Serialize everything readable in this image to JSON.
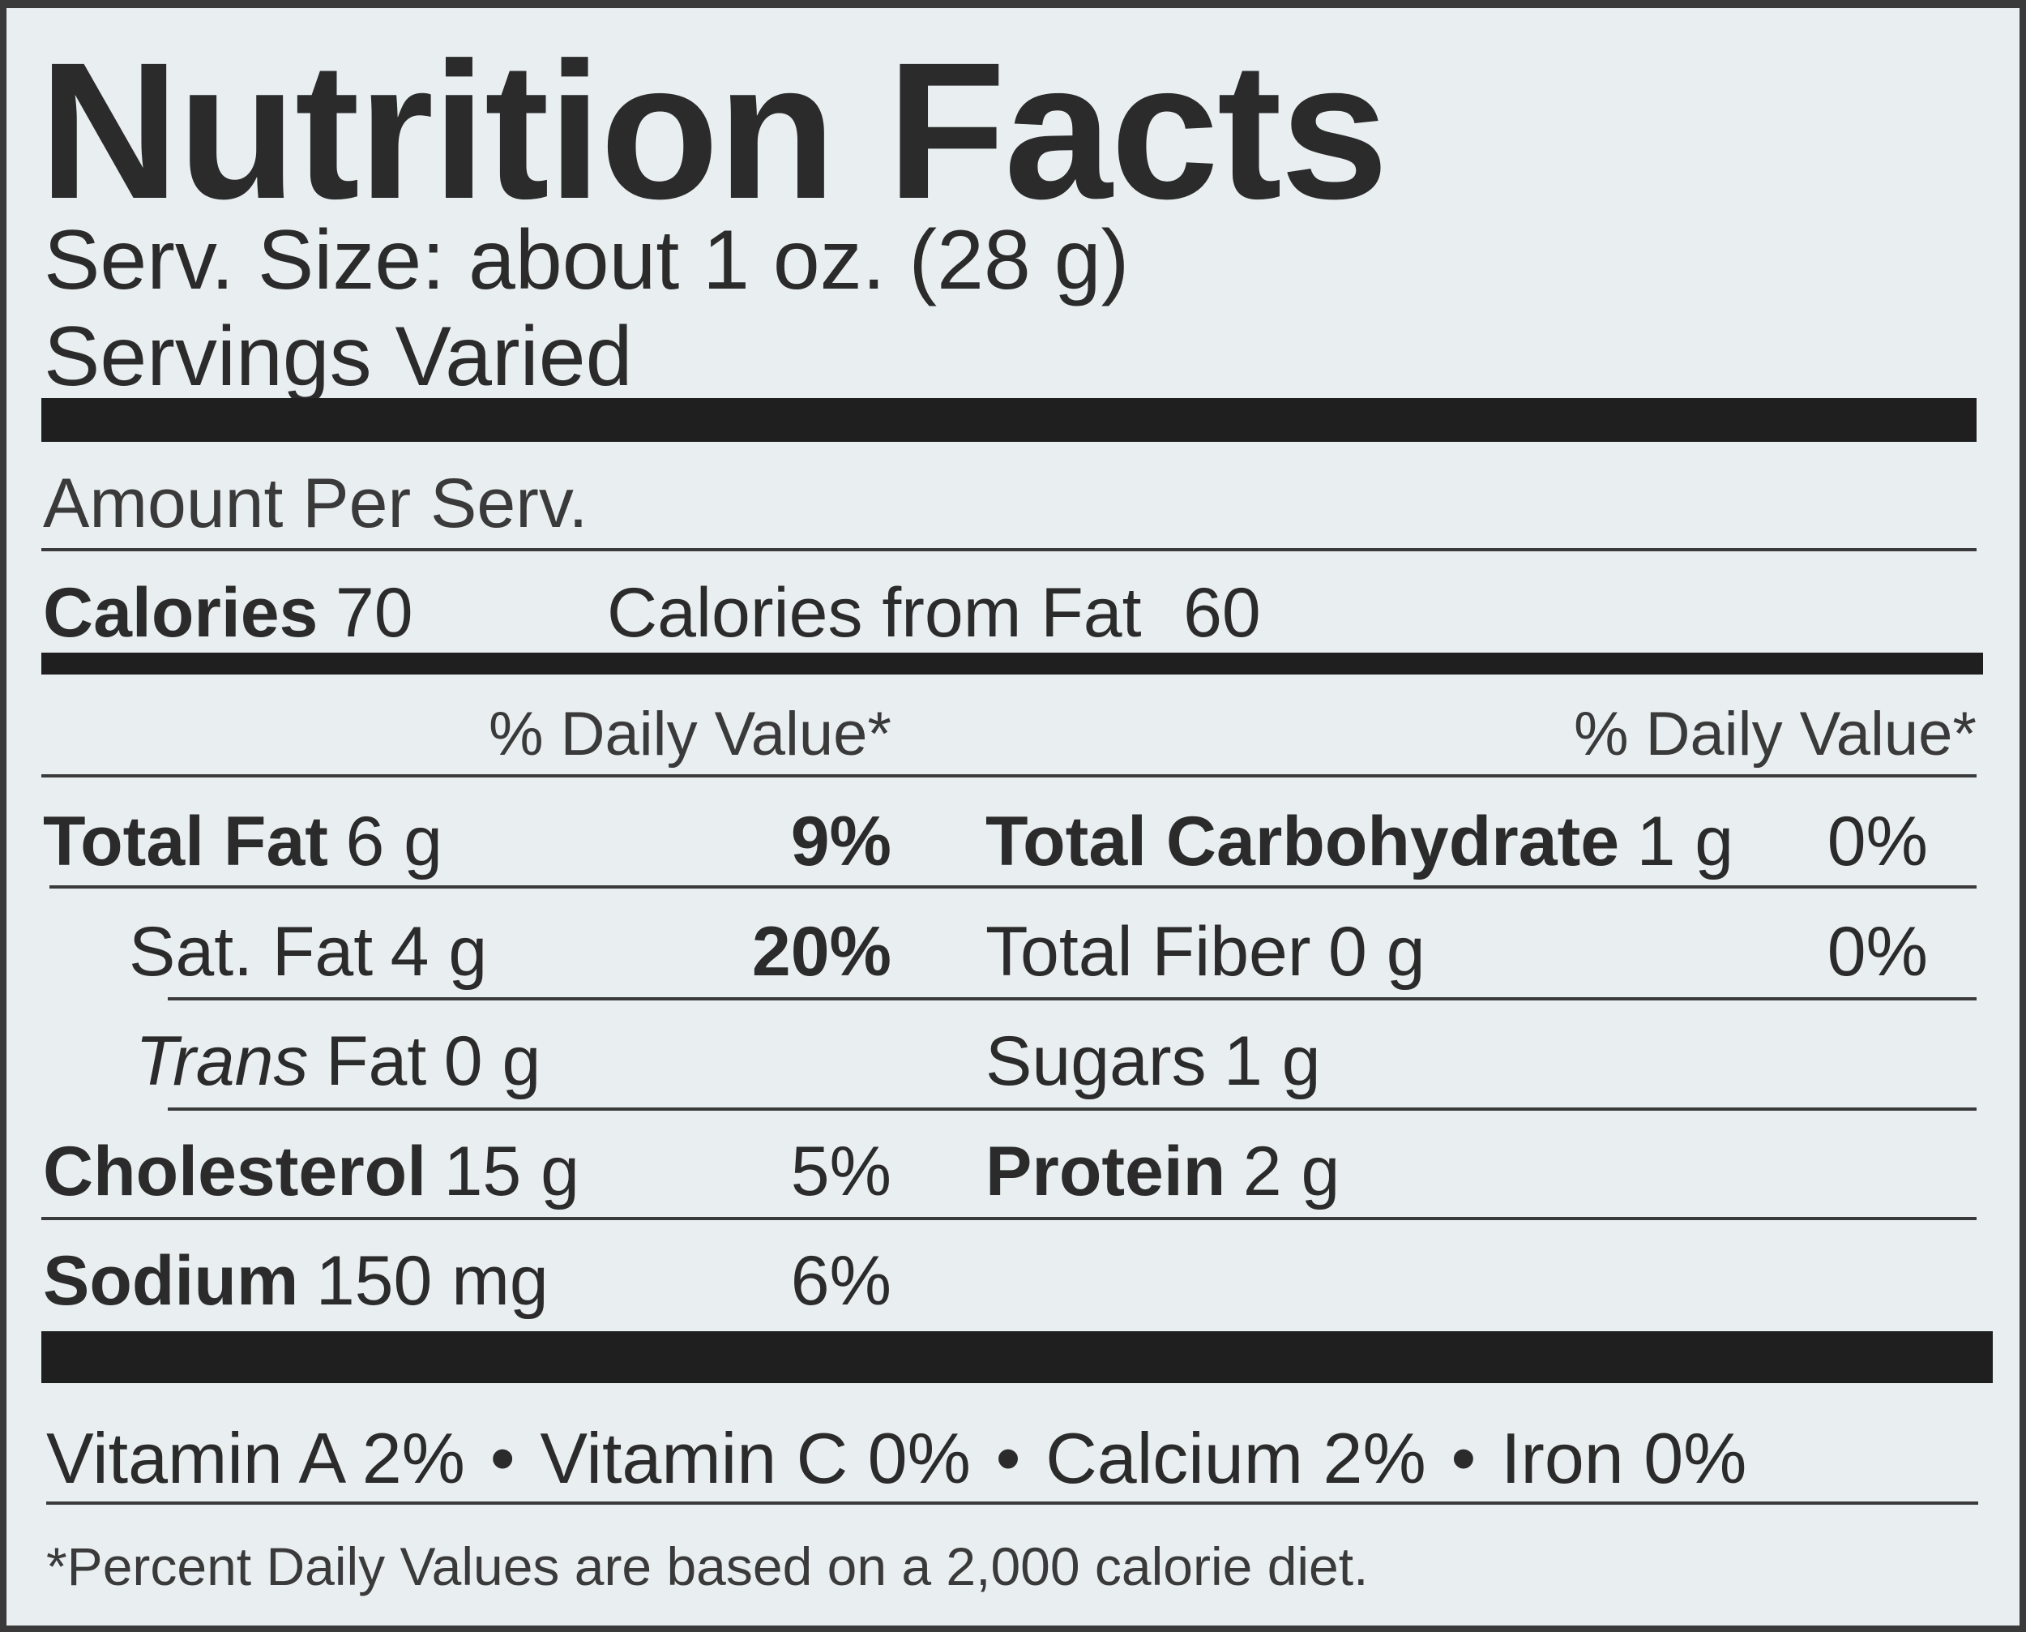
{
  "title": "Nutrition Facts",
  "serving_size": "Serv. Size: about 1 oz. (28 g)",
  "servings": "Servings Varied",
  "amount_per_serving": "Amount Per Serv.",
  "calories": {
    "label": "Calories",
    "value": 70
  },
  "calories_from_fat": {
    "label": "Calories from Fat",
    "value": 60
  },
  "daily_value_headers": [
    "% Daily Value*",
    "% Daily Value*"
  ],
  "left_nutrients": [
    {
      "name": "Total Fat",
      "amount": "6 g",
      "daily_value": "9%"
    },
    {
      "name": "Sat. Fat",
      "amount": "4 g",
      "daily_value": "20%"
    },
    {
      "name_italic": "Trans",
      "name": "Fat",
      "amount": "0 g"
    },
    {
      "name": "Cholesterol",
      "amount": "15 g",
      "daily_value": "5%"
    },
    {
      "name": "Sodium",
      "amount": "150 mg",
      "daily_value": "6%"
    }
  ],
  "right_nutrients": [
    {
      "name": "Total Carbohydrate",
      "amount": "1 g",
      "daily_value": "0%"
    },
    {
      "name": "Total Fiber",
      "amount": "0 g",
      "daily_value": "0%"
    },
    {
      "name": "Sugars",
      "amount": "1 g"
    },
    {
      "name": "Protein",
      "amount": "2 g"
    }
  ],
  "vitamins": [
    "Vitamin A 2%",
    "Vitamin C 0%",
    "Calcium 2%",
    "Iron 0%"
  ],
  "footnote": "*Percent Daily Values are based on a 2,000 calorie diet."
}
